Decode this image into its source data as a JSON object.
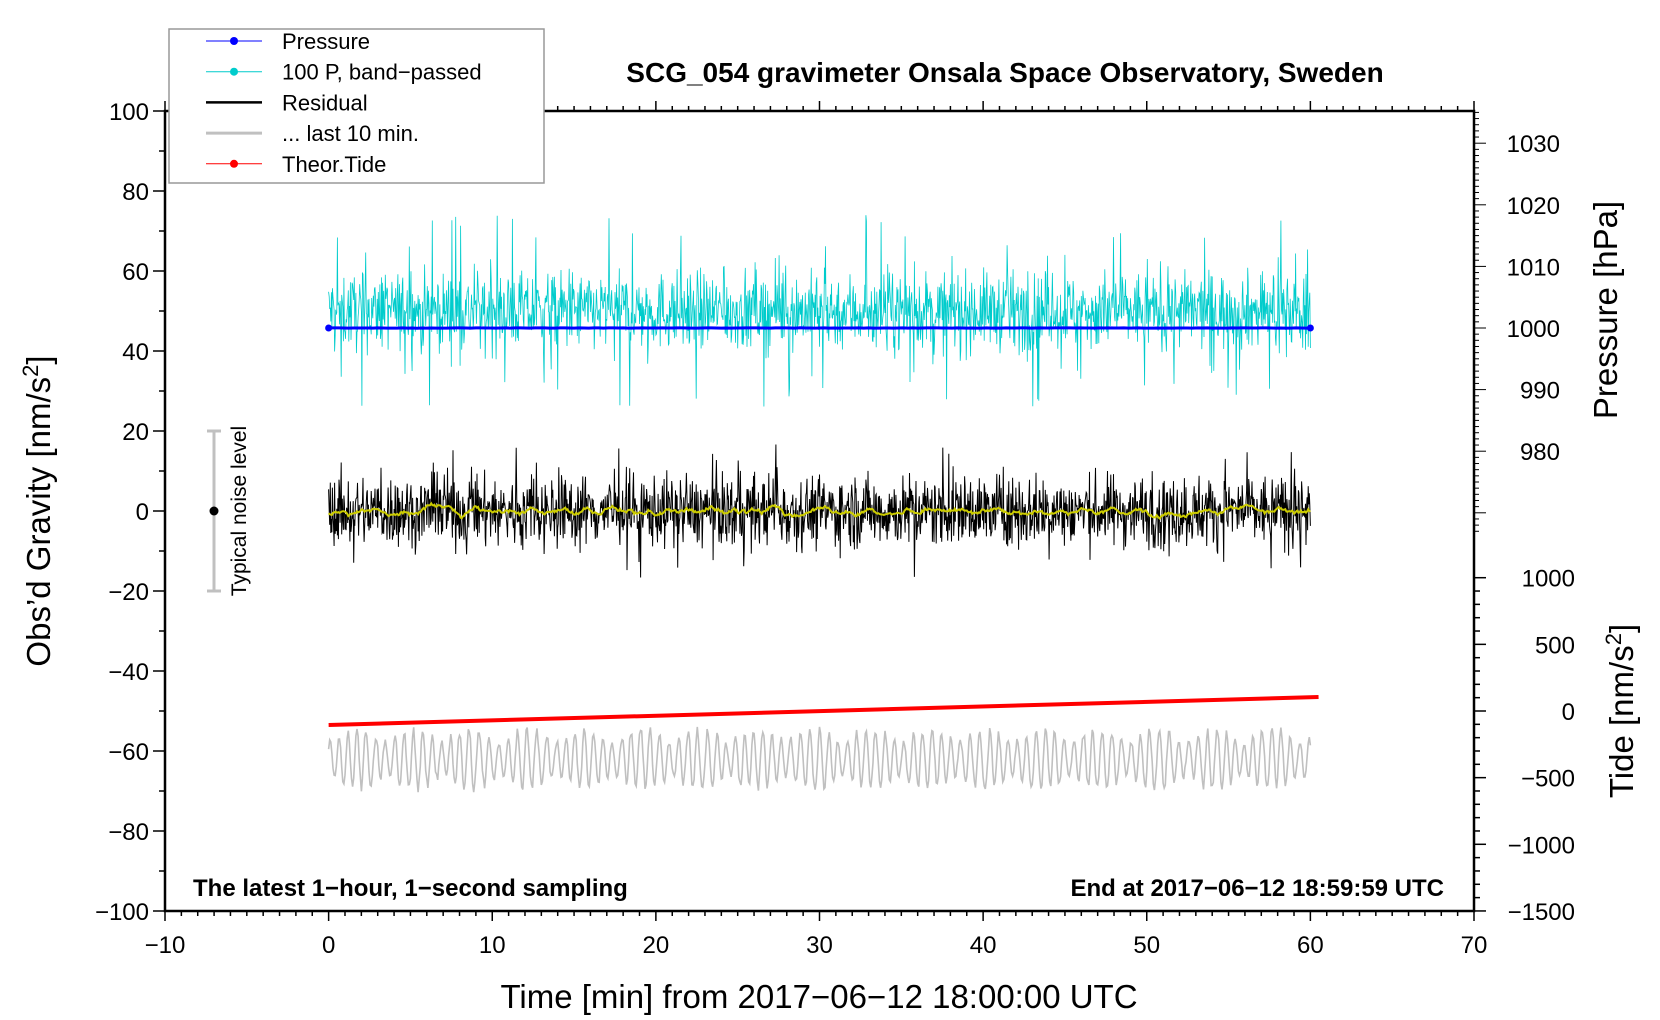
{
  "chart_data": {
    "type": "line",
    "title": "SCG_054 gravimeter Onsala Space Observatory, Sweden",
    "xlabel": "Time [min] from 2017−06−12 18:00:00 UTC",
    "ylabel": {
      "pre": "Obs’d Gravity [nm/s",
      "sup": "2",
      "post": "]"
    },
    "y2label": "Pressure [hPa]",
    "y3label": {
      "pre": "Tide [nm/s",
      "sup": "2",
      "post": "]"
    },
    "xlim": [
      -10,
      70
    ],
    "ylim": [
      -100,
      100
    ],
    "xticks": [
      "−10",
      "0",
      "10",
      "20",
      "30",
      "40",
      "50",
      "60",
      "70"
    ],
    "yticks": [
      "100",
      "80",
      "60",
      "40",
      "20",
      "0",
      "−20",
      "−40",
      "−60",
      "−80",
      "−100"
    ],
    "pressure_ticks": [
      "1030",
      "1020",
      "1010",
      "1000",
      "990",
      "980"
    ],
    "tide_ticks": [
      "1000",
      "500",
      "0",
      "−500",
      "−1000",
      "−1500"
    ],
    "legend": {
      "placement": "top-left",
      "entries": [
        {
          "label": "Pressure",
          "color": "#0000ff",
          "marker": true
        },
        {
          "label": "100 P, band−passed",
          "color": "#00cccc",
          "marker": true
        },
        {
          "label": "Residual",
          "color": "#000000",
          "marker": false
        },
        {
          "label": "... last 10 min.",
          "color": "#c0c0c0",
          "marker": false
        },
        {
          "label": "Theor.Tide",
          "color": "#ff0000",
          "marker": true
        }
      ]
    },
    "series": [
      {
        "name": "Pressure",
        "axis": "pressure_hPa",
        "t_range": [
          0,
          60
        ],
        "value": 1000,
        "color": "#0000ff"
      },
      {
        "name": "100 P, band-passed",
        "axis": "gravity",
        "t_range": [
          0,
          60
        ],
        "mean": 50,
        "typical_amplitude": 6,
        "max_excursion": 22,
        "color": "#00cccc"
      },
      {
        "name": "Residual",
        "axis": "gravity",
        "t_range": [
          0,
          60
        ],
        "mean": 0,
        "typical_amplitude": 5,
        "max_excursion": 17,
        "color": "#000000"
      },
      {
        "name": "Residual smoothed",
        "axis": "gravity",
        "t_range": [
          0,
          60
        ],
        "mean": 0,
        "typical_amplitude": 1.5,
        "color": "#cccc00"
      },
      {
        "name": "... last 10 min.",
        "axis": "gravity",
        "t_range": [
          0,
          60
        ],
        "mean": -62,
        "typical_amplitude": 6,
        "max_excursion": 15,
        "color": "#c0c0c0"
      },
      {
        "name": "Theor.Tide",
        "axis": "tide",
        "t": [
          0,
          60.5
        ],
        "values": [
          -105,
          105
        ],
        "color": "#ff0000"
      }
    ],
    "noise_bar": {
      "label": "Typical noise level",
      "t": -7,
      "center": 0,
      "half_range": 20
    },
    "annotations": {
      "left": "The latest 1−hour, 1−second sampling",
      "right": "End at 2017−06−12 18:59:59 UTC"
    }
  }
}
